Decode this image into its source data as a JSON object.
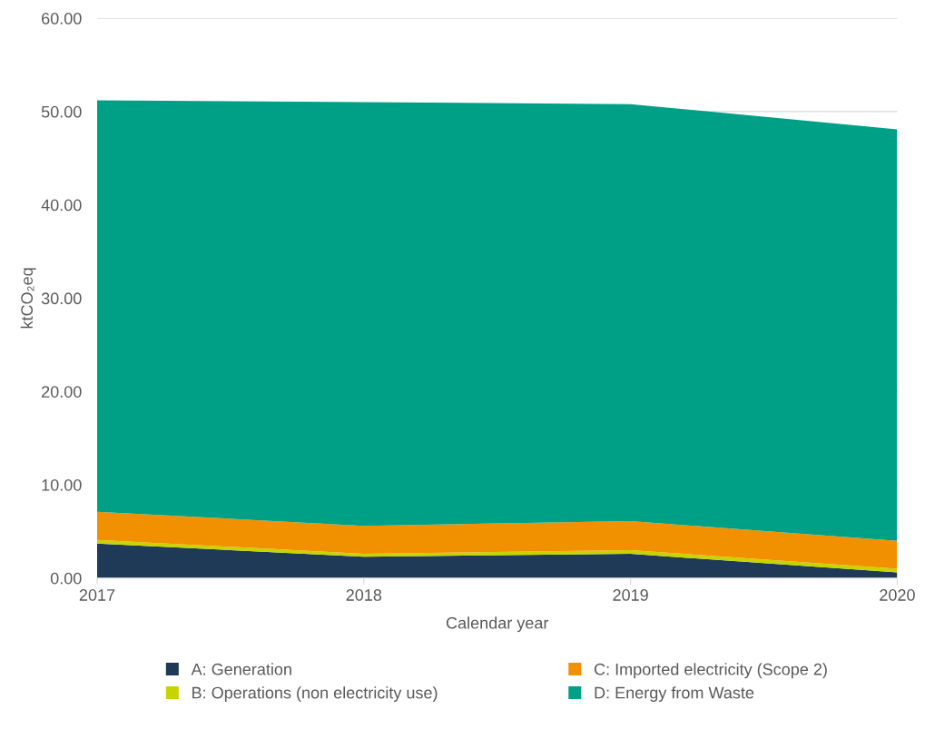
{
  "chart_data": {
    "type": "area",
    "stacked": true,
    "xlabel": "Calendar year",
    "ylabel": "ktCO₂eq",
    "x": [
      2017,
      2018,
      2019,
      2020
    ],
    "series": [
      {
        "name": "A: Generation",
        "color": "#1e3a56",
        "values": [
          3.7,
          2.3,
          2.6,
          0.6
        ]
      },
      {
        "name": "B: Operations (non electricity use)",
        "color": "#c8d400",
        "values": [
          0.4,
          0.3,
          0.4,
          0.4
        ]
      },
      {
        "name": "C: Imported electricity (Scope 2)",
        "color": "#f29100",
        "values": [
          3.0,
          3.0,
          3.1,
          3.0
        ]
      },
      {
        "name": "D: Energy from Waste",
        "color": "#00a087",
        "values": [
          44.1,
          45.4,
          44.7,
          44.1
        ]
      }
    ],
    "xlim": [
      2017,
      2020
    ],
    "xticks": [
      2017,
      2018,
      2019,
      2020
    ],
    "ylim": [
      0,
      60
    ],
    "yticks": [
      {
        "value": 0,
        "label": "0.00"
      },
      {
        "value": 10,
        "label": "10.00"
      },
      {
        "value": 20,
        "label": "20.00"
      },
      {
        "value": 30,
        "label": "30.00"
      },
      {
        "value": 40,
        "label": "40.00"
      },
      {
        "value": 50,
        "label": "50.00"
      },
      {
        "value": 60,
        "label": "60.00"
      }
    ],
    "grid": "y",
    "legend": "bottom"
  }
}
